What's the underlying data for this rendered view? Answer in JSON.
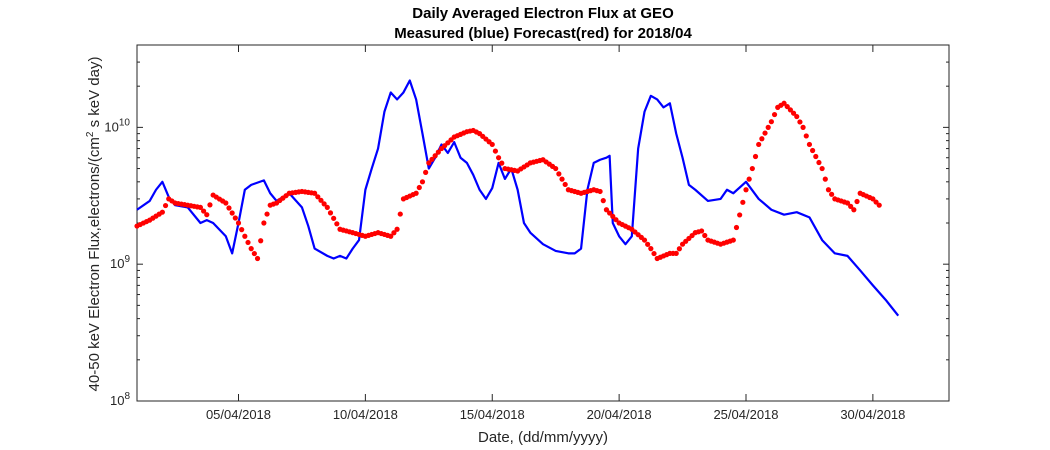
{
  "chart_data": {
    "type": "line",
    "title": [
      "Daily Averaged Electron Flux at GEO",
      "Measured (blue) Forecast(red) for 2018/04"
    ],
    "xlabel": "Date, (dd/mm/yyyy)",
    "ylabel": "40-50 keV Electron Flux,electrons/(cm² s keV day)",
    "yscale": "log",
    "ylim": [
      100000000,
      40000000000
    ],
    "xlim": [
      "2018-04-01",
      "2018-05-03"
    ],
    "grid": false,
    "y_ticks": [
      {
        "value": 100000000,
        "base": "10",
        "exp": "8"
      },
      {
        "value": 1000000000,
        "base": "10",
        "exp": "9"
      },
      {
        "value": 10000000000,
        "base": "10",
        "exp": "10"
      }
    ],
    "x_ticks": [
      {
        "value": "2018-04-05",
        "label": "05/04/2018"
      },
      {
        "value": "2018-04-10",
        "label": "10/04/2018"
      },
      {
        "value": "2018-04-15",
        "label": "15/04/2018"
      },
      {
        "value": "2018-04-20",
        "label": "20/04/2018"
      },
      {
        "value": "2018-04-25",
        "label": "25/04/2018"
      },
      {
        "value": "2018-04-30",
        "label": "30/04/2018"
      }
    ],
    "series": [
      {
        "style": "line",
        "color": "#0000ff",
        "points": [
          [
            "2018-04-01 00:00",
            2500000000.0
          ],
          [
            "2018-04-01 12:00",
            2900000000.0
          ],
          [
            "2018-04-01 18:00",
            3500000000.0
          ],
          [
            "2018-04-02 00:00",
            4000000000.0
          ],
          [
            "2018-04-02 06:00",
            3100000000.0
          ],
          [
            "2018-04-02 12:00",
            2700000000.0
          ],
          [
            "2018-04-03 00:00",
            2600000000.0
          ],
          [
            "2018-04-03 12:00",
            2000000000.0
          ],
          [
            "2018-04-03 18:00",
            2100000000.0
          ],
          [
            "2018-04-04 00:00",
            2000000000.0
          ],
          [
            "2018-04-04 12:00",
            1600000000.0
          ],
          [
            "2018-04-04 18:00",
            1200000000.0
          ],
          [
            "2018-04-05 00:00",
            2000000000.0
          ],
          [
            "2018-04-05 06:00",
            3500000000.0
          ],
          [
            "2018-04-05 12:00",
            3800000000.0
          ],
          [
            "2018-04-06 00:00",
            4100000000.0
          ],
          [
            "2018-04-06 06:00",
            3300000000.0
          ],
          [
            "2018-04-06 12:00",
            2900000000.0
          ],
          [
            "2018-04-07 00:00",
            3300000000.0
          ],
          [
            "2018-04-07 12:00",
            2600000000.0
          ],
          [
            "2018-04-07 18:00",
            1900000000.0
          ],
          [
            "2018-04-08 00:00",
            1300000000.0
          ],
          [
            "2018-04-08 12:00",
            1150000000.0
          ],
          [
            "2018-04-08 18:00",
            1100000000.0
          ],
          [
            "2018-04-09 00:00",
            1150000000.0
          ],
          [
            "2018-04-09 06:00",
            1100000000.0
          ],
          [
            "2018-04-09 12:00",
            1300000000.0
          ],
          [
            "2018-04-09 18:00",
            1500000000.0
          ],
          [
            "2018-04-10 00:00",
            3500000000.0
          ],
          [
            "2018-04-10 06:00",
            5000000000.0
          ],
          [
            "2018-04-10 12:00",
            7000000000.0
          ],
          [
            "2018-04-10 18:00",
            13000000000.0
          ],
          [
            "2018-04-11 00:00",
            18000000000.0
          ],
          [
            "2018-04-11 06:00",
            16000000000.0
          ],
          [
            "2018-04-11 12:00",
            18000000000.0
          ],
          [
            "2018-04-11 18:00",
            22000000000.0
          ],
          [
            "2018-04-12 00:00",
            16000000000.0
          ],
          [
            "2018-04-12 06:00",
            9000000000.0
          ],
          [
            "2018-04-12 12:00",
            5000000000.0
          ],
          [
            "2018-04-12 18:00",
            6000000000.0
          ],
          [
            "2018-04-13 00:00",
            7500000000.0
          ],
          [
            "2018-04-13 06:00",
            6500000000.0
          ],
          [
            "2018-04-13 12:00",
            7800000000.0
          ],
          [
            "2018-04-13 18:00",
            6000000000.0
          ],
          [
            "2018-04-14 00:00",
            5500000000.0
          ],
          [
            "2018-04-14 06:00",
            4500000000.0
          ],
          [
            "2018-04-14 12:00",
            3500000000.0
          ],
          [
            "2018-04-14 18:00",
            3000000000.0
          ],
          [
            "2018-04-15 00:00",
            3600000000.0
          ],
          [
            "2018-04-15 06:00",
            5500000000.0
          ],
          [
            "2018-04-15 12:00",
            4200000000.0
          ],
          [
            "2018-04-15 18:00",
            5000000000.0
          ],
          [
            "2018-04-16 00:00",
            3500000000.0
          ],
          [
            "2018-04-16 06:00",
            2000000000.0
          ],
          [
            "2018-04-16 12:00",
            1700000000.0
          ],
          [
            "2018-04-17 00:00",
            1400000000.0
          ],
          [
            "2018-04-17 12:00",
            1250000000.0
          ],
          [
            "2018-04-18 00:00",
            1200000000.0
          ],
          [
            "2018-04-18 06:00",
            1200000000.0
          ],
          [
            "2018-04-18 12:00",
            1300000000.0
          ],
          [
            "2018-04-18 18:00",
            3500000000.0
          ],
          [
            "2018-04-19 00:00",
            5500000000.0
          ],
          [
            "2018-04-19 06:00",
            5800000000.0
          ],
          [
            "2018-04-19 12:00",
            6000000000.0
          ],
          [
            "2018-04-19 15:00",
            6200000000.0
          ],
          [
            "2018-04-19 18:00",
            2000000000.0
          ],
          [
            "2018-04-20 00:00",
            1600000000.0
          ],
          [
            "2018-04-20 06:00",
            1400000000.0
          ],
          [
            "2018-04-20 12:00",
            1600000000.0
          ],
          [
            "2018-04-20 18:00",
            7000000000.0
          ],
          [
            "2018-04-21 00:00",
            13000000000.0
          ],
          [
            "2018-04-21 06:00",
            17000000000.0
          ],
          [
            "2018-04-21 12:00",
            16000000000.0
          ],
          [
            "2018-04-21 18:00",
            14000000000.0
          ],
          [
            "2018-04-22 00:00",
            15000000000.0
          ],
          [
            "2018-04-22 06:00",
            9000000000.0
          ],
          [
            "2018-04-22 12:00",
            6000000000.0
          ],
          [
            "2018-04-22 18:00",
            3800000000.0
          ],
          [
            "2018-04-23 00:00",
            3500000000.0
          ],
          [
            "2018-04-23 12:00",
            2900000000.0
          ],
          [
            "2018-04-24 00:00",
            3000000000.0
          ],
          [
            "2018-04-24 06:00",
            3500000000.0
          ],
          [
            "2018-04-24 12:00",
            3300000000.0
          ],
          [
            "2018-04-25 00:00",
            4000000000.0
          ],
          [
            "2018-04-25 12:00",
            3000000000.0
          ],
          [
            "2018-04-26 00:00",
            2500000000.0
          ],
          [
            "2018-04-26 12:00",
            2300000000.0
          ],
          [
            "2018-04-27 00:00",
            2400000000.0
          ],
          [
            "2018-04-27 12:00",
            2200000000.0
          ],
          [
            "2018-04-28 00:00",
            1500000000.0
          ],
          [
            "2018-04-28 12:00",
            1200000000.0
          ],
          [
            "2018-04-29 00:00",
            1150000000.0
          ],
          [
            "2018-04-29 12:00",
            900000000.0
          ],
          [
            "2018-04-30 00:00",
            700000000.0
          ],
          [
            "2018-04-30 12:00",
            550000000.0
          ],
          [
            "2018-05-01 00:00",
            420000000.0
          ]
        ]
      },
      {
        "style": "markers",
        "color": "#ff0000",
        "points": [
          [
            "2018-04-01 00:00",
            1900000000.0
          ],
          [
            "2018-04-01 12:00",
            2100000000.0
          ],
          [
            "2018-04-02 00:00",
            2400000000.0
          ],
          [
            "2018-04-02 06:00",
            3000000000.0
          ],
          [
            "2018-04-02 12:00",
            2800000000.0
          ],
          [
            "2018-04-03 00:00",
            2700000000.0
          ],
          [
            "2018-04-03 12:00",
            2600000000.0
          ],
          [
            "2018-04-03 18:00",
            2300000000.0
          ],
          [
            "2018-04-04 00:00",
            3200000000.0
          ],
          [
            "2018-04-04 12:00",
            2800000000.0
          ],
          [
            "2018-04-05 00:00",
            2000000000.0
          ],
          [
            "2018-04-05 06:00",
            1600000000.0
          ],
          [
            "2018-04-05 12:00",
            1300000000.0
          ],
          [
            "2018-04-05 18:00",
            1100000000.0
          ],
          [
            "2018-04-06 00:00",
            2000000000.0
          ],
          [
            "2018-04-06 06:00",
            2700000000.0
          ],
          [
            "2018-04-06 12:00",
            2800000000.0
          ],
          [
            "2018-04-07 00:00",
            3300000000.0
          ],
          [
            "2018-04-07 12:00",
            3400000000.0
          ],
          [
            "2018-04-08 00:00",
            3300000000.0
          ],
          [
            "2018-04-08 12:00",
            2600000000.0
          ],
          [
            "2018-04-09 00:00",
            1800000000.0
          ],
          [
            "2018-04-09 12:00",
            1700000000.0
          ],
          [
            "2018-04-10 00:00",
            1600000000.0
          ],
          [
            "2018-04-10 12:00",
            1700000000.0
          ],
          [
            "2018-04-11 00:00",
            1600000000.0
          ],
          [
            "2018-04-11 06:00",
            1800000000.0
          ],
          [
            "2018-04-11 12:00",
            3000000000.0
          ],
          [
            "2018-04-12 00:00",
            3300000000.0
          ],
          [
            "2018-04-12 06:00",
            4000000000.0
          ],
          [
            "2018-04-12 12:00",
            5500000000.0
          ],
          [
            "2018-04-13 00:00",
            7000000000.0
          ],
          [
            "2018-04-13 12:00",
            8500000000.0
          ],
          [
            "2018-04-14 00:00",
            9300000000.0
          ],
          [
            "2018-04-14 06:00",
            9500000000.0
          ],
          [
            "2018-04-14 12:00",
            9000000000.0
          ],
          [
            "2018-04-15 00:00",
            7500000000.0
          ],
          [
            "2018-04-15 06:00",
            6000000000.0
          ],
          [
            "2018-04-15 12:00",
            5000000000.0
          ],
          [
            "2018-04-16 00:00",
            4800000000.0
          ],
          [
            "2018-04-16 12:00",
            5500000000.0
          ],
          [
            "2018-04-17 00:00",
            5800000000.0
          ],
          [
            "2018-04-17 12:00",
            5000000000.0
          ],
          [
            "2018-04-18 00:00",
            3500000000.0
          ],
          [
            "2018-04-18 12:00",
            3300000000.0
          ],
          [
            "2018-04-19 00:00",
            3500000000.0
          ],
          [
            "2018-04-19 06:00",
            3400000000.0
          ],
          [
            "2018-04-19 12:00",
            2500000000.0
          ],
          [
            "2018-04-20 00:00",
            2000000000.0
          ],
          [
            "2018-04-20 12:00",
            1800000000.0
          ],
          [
            "2018-04-21 00:00",
            1500000000.0
          ],
          [
            "2018-04-21 06:00",
            1300000000.0
          ],
          [
            "2018-04-21 12:00",
            1100000000.0
          ],
          [
            "2018-04-22 00:00",
            1200000000.0
          ],
          [
            "2018-04-22 06:00",
            1200000000.0
          ],
          [
            "2018-04-22 12:00",
            1400000000.0
          ],
          [
            "2018-04-23 00:00",
            1700000000.0
          ],
          [
            "2018-04-23 06:00",
            1750000000.0
          ],
          [
            "2018-04-23 12:00",
            1500000000.0
          ],
          [
            "2018-04-24 00:00",
            1400000000.0
          ],
          [
            "2018-04-24 12:00",
            1500000000.0
          ],
          [
            "2018-04-25 00:00",
            3500000000.0
          ],
          [
            "2018-04-25 06:00",
            5000000000.0
          ],
          [
            "2018-04-25 12:00",
            7500000000.0
          ],
          [
            "2018-04-26 00:00",
            11000000000.0
          ],
          [
            "2018-04-26 06:00",
            14000000000.0
          ],
          [
            "2018-04-26 12:00",
            15000000000.0
          ],
          [
            "2018-04-27 00:00",
            12000000000.0
          ],
          [
            "2018-04-27 06:00",
            10000000000.0
          ],
          [
            "2018-04-27 12:00",
            7500000000.0
          ],
          [
            "2018-04-28 00:00",
            5000000000.0
          ],
          [
            "2018-04-28 06:00",
            3500000000.0
          ],
          [
            "2018-04-28 12:00",
            3000000000.0
          ],
          [
            "2018-04-29 00:00",
            2800000000.0
          ],
          [
            "2018-04-29 06:00",
            2500000000.0
          ],
          [
            "2018-04-29 12:00",
            3300000000.0
          ],
          [
            "2018-04-30 00:00",
            3000000000.0
          ],
          [
            "2018-04-30 06:00",
            2700000000.0
          ]
        ]
      }
    ]
  }
}
